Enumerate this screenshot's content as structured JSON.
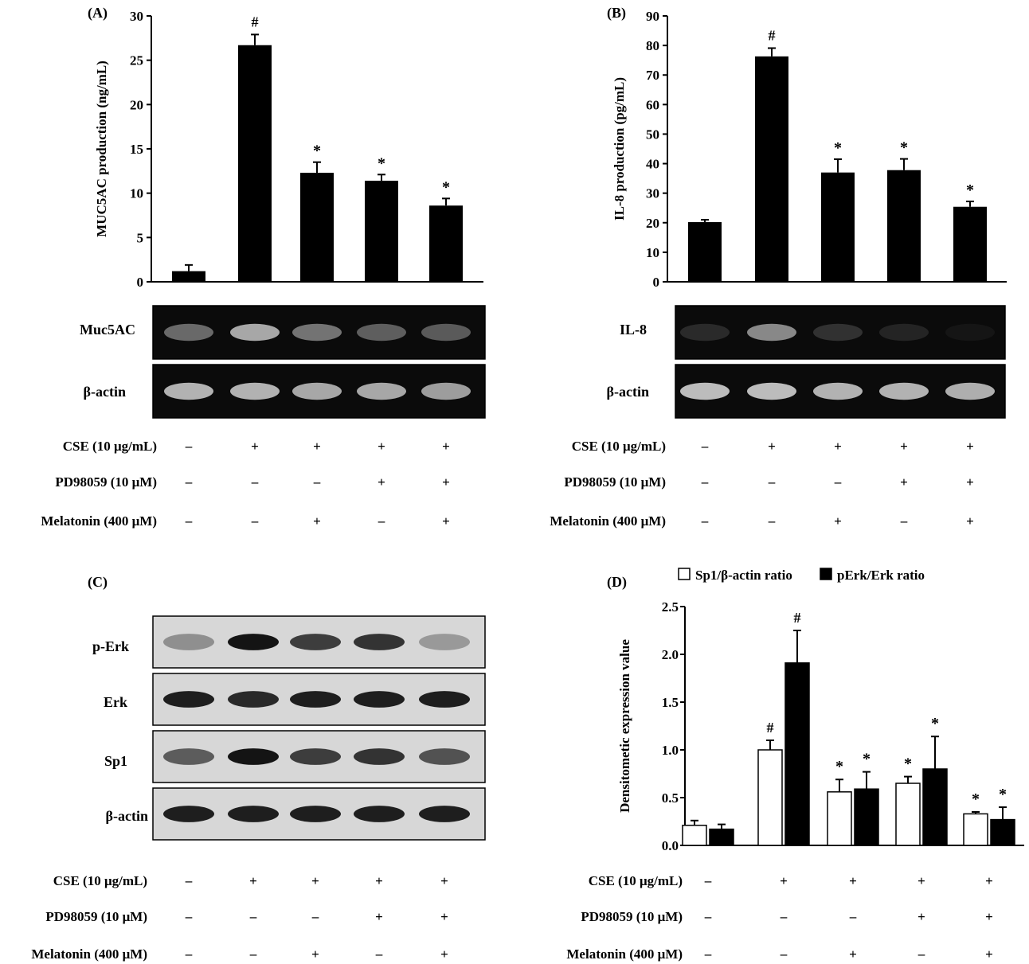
{
  "panels": {
    "A": {
      "label": "(A)"
    },
    "B": {
      "label": "(B)"
    },
    "C": {
      "label": "(C)"
    },
    "D": {
      "label": "(D)"
    }
  },
  "gel_labels": {
    "A": [
      "Muc5AC",
      "β-actin"
    ],
    "B": [
      "IL-8",
      "β-actin"
    ],
    "C": [
      "p-Erk",
      "Erk",
      "Sp1",
      "β-actin"
    ]
  },
  "treatments": {
    "labels": [
      "CSE (10 μg/mL)",
      "PD98059 (10 μM)",
      "Melatonin (400 μM)"
    ],
    "rows": [
      [
        "–",
        "+",
        "+",
        "+",
        "+"
      ],
      [
        "–",
        "–",
        "–",
        "+",
        "+"
      ],
      [
        "–",
        "–",
        "+",
        "–",
        "+"
      ]
    ]
  },
  "colors": {
    "bar_black": "#000000",
    "bar_white": "#ffffff",
    "gel_bg": "#0b0b0b",
    "blot_bg": "#d7d7d7"
  },
  "chart_data": [
    {
      "panel": "A",
      "type": "bar",
      "categories": [
        "1",
        "2",
        "3",
        "4",
        "5"
      ],
      "values": [
        1.2,
        26.7,
        12.3,
        11.4,
        8.6
      ],
      "errors": [
        0.7,
        1.2,
        1.2,
        0.7,
        0.8
      ],
      "annotations": [
        "",
        "#",
        "*",
        "*",
        "*"
      ],
      "ylabel": "MUC5AC production (ng/mL)",
      "ylim": [
        0,
        30
      ],
      "yticks": [
        0,
        5,
        10,
        15,
        20,
        25,
        30
      ]
    },
    {
      "panel": "B",
      "type": "bar",
      "categories": [
        "1",
        "2",
        "3",
        "4",
        "5"
      ],
      "values": [
        20.2,
        76.3,
        37.0,
        37.8,
        25.4
      ],
      "errors": [
        0.8,
        2.8,
        4.5,
        3.8,
        1.8
      ],
      "annotations": [
        "",
        "#",
        "*",
        "*",
        "*"
      ],
      "ylabel": "IL-8 production (pg/mL)",
      "ylim": [
        0,
        90
      ],
      "yticks": [
        0,
        10,
        20,
        30,
        40,
        50,
        60,
        70,
        80,
        90
      ]
    },
    {
      "panel": "D",
      "type": "bar",
      "categories": [
        "1",
        "2",
        "3",
        "4",
        "5"
      ],
      "series": [
        {
          "name": "Sp1/β-actin ratio",
          "color": "#ffffff",
          "values": [
            0.21,
            1.0,
            0.56,
            0.65,
            0.33
          ],
          "errors": [
            0.05,
            0.1,
            0.13,
            0.07,
            0.02
          ],
          "annotations": [
            "",
            "#",
            "*",
            "*",
            "*"
          ]
        },
        {
          "name": "pErk/Erk ratio",
          "color": "#000000",
          "values": [
            0.17,
            1.91,
            0.59,
            0.8,
            0.27
          ],
          "errors": [
            0.05,
            0.34,
            0.18,
            0.34,
            0.13
          ],
          "annotations": [
            "",
            "#",
            "*",
            "*",
            "*"
          ]
        }
      ],
      "ylabel": "Densitometic expression value",
      "ylim": [
        0,
        2.5
      ],
      "yticks": [
        "0.0",
        "0.5",
        "1.0",
        "1.5",
        "2.0",
        "2.5"
      ],
      "legend": "top"
    }
  ]
}
